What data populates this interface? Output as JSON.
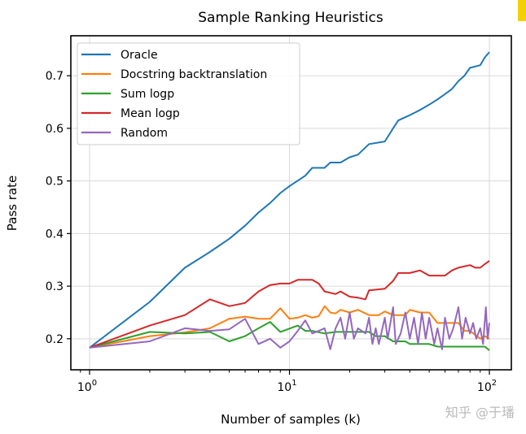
{
  "chart_data": {
    "type": "line",
    "title": "Sample Ranking Heuristics",
    "xlabel": "Number of samples (k)",
    "ylabel": "Pass rate",
    "xscale": "log",
    "xlim": [
      0.806,
      128.8
    ],
    "ylim": [
      0.141,
      0.776
    ],
    "xticks": [
      1,
      10,
      100
    ],
    "xtick_labels": [
      {
        "base": "10",
        "exp": "0"
      },
      {
        "base": "10",
        "exp": "1"
      },
      {
        "base": "10",
        "exp": "2"
      }
    ],
    "yticks": [
      0.2,
      0.3,
      0.4,
      0.5,
      0.6,
      0.7
    ],
    "ytick_labels": [
      "0.2",
      "0.3",
      "0.4",
      "0.5",
      "0.6",
      "0.7"
    ],
    "grid": true,
    "legend_position": "top-left",
    "series": [
      {
        "name": "Oracle",
        "color": "#1f77b4",
        "points": [
          [
            1,
            0.183
          ],
          [
            2,
            0.27
          ],
          [
            3,
            0.335
          ],
          [
            4,
            0.365
          ],
          [
            5,
            0.39
          ],
          [
            6,
            0.415
          ],
          [
            7,
            0.44
          ],
          [
            8,
            0.458
          ],
          [
            9,
            0.477
          ],
          [
            10,
            0.49
          ],
          [
            12,
            0.51
          ],
          [
            13,
            0.525
          ],
          [
            15,
            0.525
          ],
          [
            16,
            0.535
          ],
          [
            18,
            0.535
          ],
          [
            20,
            0.545
          ],
          [
            22,
            0.55
          ],
          [
            25,
            0.57
          ],
          [
            30,
            0.575
          ],
          [
            33,
            0.6
          ],
          [
            35,
            0.615
          ],
          [
            40,
            0.625
          ],
          [
            45,
            0.635
          ],
          [
            50,
            0.645
          ],
          [
            55,
            0.655
          ],
          [
            60,
            0.665
          ],
          [
            65,
            0.675
          ],
          [
            70,
            0.69
          ],
          [
            75,
            0.7
          ],
          [
            80,
            0.715
          ],
          [
            90,
            0.72
          ],
          [
            95,
            0.735
          ],
          [
            100,
            0.745
          ]
        ]
      },
      {
        "name": "Docstring backtranslation",
        "color": "#ff7f0e",
        "points": [
          [
            1,
            0.183
          ],
          [
            2,
            0.205
          ],
          [
            3,
            0.212
          ],
          [
            4,
            0.22
          ],
          [
            5,
            0.238
          ],
          [
            6,
            0.242
          ],
          [
            7,
            0.238
          ],
          [
            8,
            0.238
          ],
          [
            9,
            0.258
          ],
          [
            10,
            0.238
          ],
          [
            11,
            0.24
          ],
          [
            12,
            0.245
          ],
          [
            13,
            0.24
          ],
          [
            14,
            0.243
          ],
          [
            15,
            0.262
          ],
          [
            16,
            0.25
          ],
          [
            17,
            0.248
          ],
          [
            18,
            0.255
          ],
          [
            20,
            0.25
          ],
          [
            22,
            0.255
          ],
          [
            25,
            0.245
          ],
          [
            28,
            0.245
          ],
          [
            30,
            0.252
          ],
          [
            33,
            0.245
          ],
          [
            38,
            0.245
          ],
          [
            40,
            0.255
          ],
          [
            45,
            0.25
          ],
          [
            50,
            0.25
          ],
          [
            55,
            0.23
          ],
          [
            60,
            0.23
          ],
          [
            70,
            0.23
          ],
          [
            75,
            0.215
          ],
          [
            80,
            0.215
          ],
          [
            90,
            0.2
          ],
          [
            95,
            0.205
          ],
          [
            100,
            0.2
          ]
        ]
      },
      {
        "name": "Sum logp",
        "color": "#2ca02c",
        "points": [
          [
            1,
            0.183
          ],
          [
            2,
            0.213
          ],
          [
            3,
            0.21
          ],
          [
            4,
            0.213
          ],
          [
            5,
            0.195
          ],
          [
            6,
            0.205
          ],
          [
            7,
            0.22
          ],
          [
            8,
            0.232
          ],
          [
            9,
            0.213
          ],
          [
            11,
            0.225
          ],
          [
            12,
            0.215
          ],
          [
            13,
            0.215
          ],
          [
            15,
            0.21
          ],
          [
            17,
            0.213
          ],
          [
            20,
            0.213
          ],
          [
            25,
            0.213
          ],
          [
            27,
            0.205
          ],
          [
            30,
            0.205
          ],
          [
            33,
            0.195
          ],
          [
            38,
            0.195
          ],
          [
            40,
            0.19
          ],
          [
            50,
            0.19
          ],
          [
            55,
            0.185
          ],
          [
            95,
            0.185
          ],
          [
            100,
            0.178
          ]
        ]
      },
      {
        "name": "Mean logp",
        "color": "#d62728",
        "points": [
          [
            1,
            0.183
          ],
          [
            2,
            0.225
          ],
          [
            3,
            0.245
          ],
          [
            4,
            0.275
          ],
          [
            5,
            0.262
          ],
          [
            6,
            0.268
          ],
          [
            7,
            0.29
          ],
          [
            8,
            0.302
          ],
          [
            9,
            0.305
          ],
          [
            10,
            0.305
          ],
          [
            11,
            0.312
          ],
          [
            13,
            0.312
          ],
          [
            14,
            0.305
          ],
          [
            15,
            0.29
          ],
          [
            17,
            0.285
          ],
          [
            18,
            0.29
          ],
          [
            20,
            0.28
          ],
          [
            22,
            0.278
          ],
          [
            24,
            0.275
          ],
          [
            25,
            0.292
          ],
          [
            30,
            0.295
          ],
          [
            33,
            0.31
          ],
          [
            35,
            0.325
          ],
          [
            40,
            0.325
          ],
          [
            45,
            0.33
          ],
          [
            50,
            0.32
          ],
          [
            60,
            0.32
          ],
          [
            65,
            0.33
          ],
          [
            70,
            0.335
          ],
          [
            80,
            0.34
          ],
          [
            85,
            0.335
          ],
          [
            90,
            0.335
          ],
          [
            95,
            0.342
          ],
          [
            100,
            0.348
          ]
        ]
      },
      {
        "name": "Random",
        "color": "#9467bd",
        "points": [
          [
            1,
            0.183
          ],
          [
            2,
            0.195
          ],
          [
            3,
            0.22
          ],
          [
            4,
            0.215
          ],
          [
            5,
            0.218
          ],
          [
            6,
            0.238
          ],
          [
            7,
            0.19
          ],
          [
            8,
            0.2
          ],
          [
            9,
            0.183
          ],
          [
            10,
            0.195
          ],
          [
            11,
            0.215
          ],
          [
            12,
            0.235
          ],
          [
            13,
            0.21
          ],
          [
            14,
            0.215
          ],
          [
            15,
            0.22
          ],
          [
            16,
            0.18
          ],
          [
            17,
            0.22
          ],
          [
            18,
            0.24
          ],
          [
            19,
            0.2
          ],
          [
            20,
            0.25
          ],
          [
            21,
            0.2
          ],
          [
            22,
            0.22
          ],
          [
            24,
            0.21
          ],
          [
            25,
            0.24
          ],
          [
            26,
            0.19
          ],
          [
            27,
            0.22
          ],
          [
            28,
            0.19
          ],
          [
            30,
            0.24
          ],
          [
            31,
            0.2
          ],
          [
            33,
            0.26
          ],
          [
            34,
            0.19
          ],
          [
            36,
            0.21
          ],
          [
            38,
            0.25
          ],
          [
            40,
            0.2
          ],
          [
            42,
            0.24
          ],
          [
            44,
            0.19
          ],
          [
            46,
            0.25
          ],
          [
            48,
            0.2
          ],
          [
            50,
            0.24
          ],
          [
            53,
            0.19
          ],
          [
            55,
            0.22
          ],
          [
            58,
            0.18
          ],
          [
            60,
            0.24
          ],
          [
            63,
            0.2
          ],
          [
            66,
            0.22
          ],
          [
            70,
            0.26
          ],
          [
            73,
            0.2
          ],
          [
            76,
            0.24
          ],
          [
            80,
            0.21
          ],
          [
            83,
            0.23
          ],
          [
            86,
            0.2
          ],
          [
            90,
            0.22
          ],
          [
            93,
            0.19
          ],
          [
            96,
            0.26
          ],
          [
            98,
            0.2
          ],
          [
            100,
            0.23
          ]
        ]
      }
    ]
  },
  "watermark": "知乎 @于璠"
}
